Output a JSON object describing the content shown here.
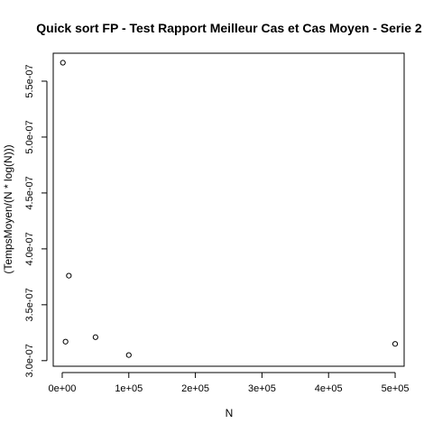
{
  "chart_data": {
    "type": "scatter",
    "title": "Quick sort FP - Test Rapport Meilleur Cas et Cas Moyen - Serie 2",
    "xlabel": "N",
    "ylabel": "(TempsMoyen/(N * log(N)))",
    "xlim": [
      -13500,
      513500
    ],
    "ylim": [
      2.95e-07,
      5.75e-07
    ],
    "x_ticks": [
      0,
      100000,
      200000,
      300000,
      400000,
      500000
    ],
    "x_tick_labels": [
      "0e+00",
      "1e+05",
      "2e+05",
      "3e+05",
      "4e+05",
      "5e+05"
    ],
    "y_ticks": [
      3e-07,
      3.5e-07,
      4e-07,
      4.5e-07,
      5e-07,
      5.5e-07
    ],
    "y_tick_labels": [
      "3.0e-07",
      "3.5e-07",
      "4.0e-07",
      "4.5e-07",
      "5.0e-07",
      "5.5e-07"
    ],
    "grid": false,
    "marker": "open-circle",
    "points": [
      {
        "x": 1000,
        "y": 5.665e-07
      },
      {
        "x": 5000,
        "y": 3.17e-07
      },
      {
        "x": 10000,
        "y": 3.76e-07
      },
      {
        "x": 50000,
        "y": 3.21e-07
      },
      {
        "x": 100000,
        "y": 3.05e-07
      },
      {
        "x": 500000,
        "y": 3.15e-07
      }
    ],
    "colors": {
      "foreground": "#000000",
      "background": "#ffffff"
    }
  }
}
